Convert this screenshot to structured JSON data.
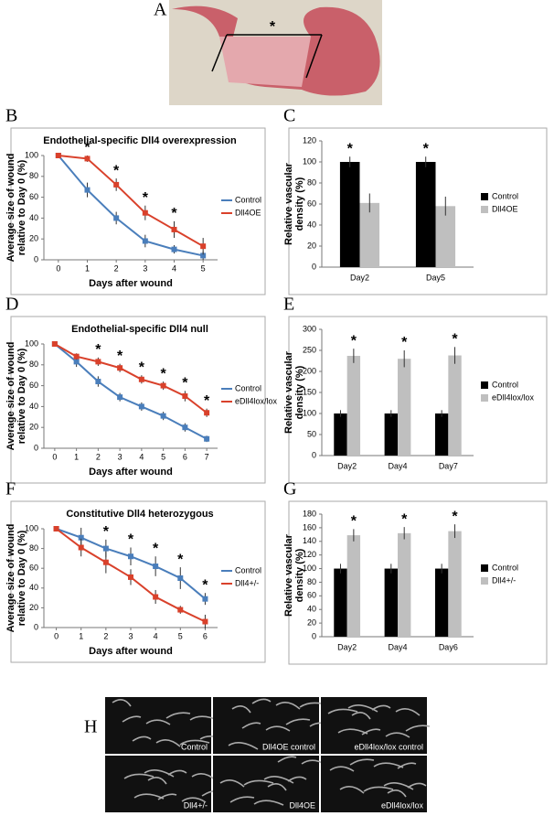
{
  "figure": {
    "panel_a": {
      "label": "A",
      "annotation": "*"
    },
    "panel_h": {
      "label": "H",
      "captions": [
        "Control",
        "Dll4OE control",
        "eDll4lox/lox control",
        "Dll4+/-",
        "Dll4OE",
        "eDll4lox/lox"
      ]
    }
  },
  "chart_data": [
    {
      "type": "line",
      "panel": "B",
      "title": "Endothelial-specific Dll4 overexpression",
      "ylabel": [
        "Average size of wound",
        "relative to Day 0 (%)"
      ],
      "xlabel": "Days after wound",
      "x": [
        0,
        1,
        2,
        3,
        4,
        5
      ],
      "xlim": [
        -0.5,
        5.5
      ],
      "xticks": [
        0,
        1,
        2,
        3,
        4,
        5
      ],
      "ylim": [
        0,
        100
      ],
      "yticks": [
        0,
        20,
        40,
        60,
        80,
        100
      ],
      "legend": "right",
      "series": [
        {
          "name": "Control",
          "color": "#4a7ebb",
          "values": [
            100,
            67,
            40,
            18,
            10,
            4
          ],
          "errors": [
            0,
            7,
            6,
            6,
            4,
            4
          ]
        },
        {
          "name": "Dll4OE",
          "color": "#d9412b",
          "values": [
            100,
            97,
            72,
            45,
            29,
            13
          ],
          "errors": [
            0,
            3,
            6,
            7,
            8,
            8
          ]
        }
      ],
      "annotations": [
        {
          "text": "*",
          "x": 1
        },
        {
          "text": "*",
          "x": 2
        },
        {
          "text": "*",
          "x": 3
        },
        {
          "text": "*",
          "x": 4
        }
      ]
    },
    {
      "type": "bar",
      "panel": "C",
      "ylabel": [
        "Relative vascular",
        "density (%)"
      ],
      "categories": [
        "Day2",
        "Day5"
      ],
      "ylim": [
        0,
        120
      ],
      "yticks": [
        0,
        20,
        40,
        60,
        80,
        100,
        120
      ],
      "legend": "right",
      "series": [
        {
          "name": "Control",
          "color": "#000000",
          "values": [
            100,
            100
          ],
          "errors": [
            5,
            5
          ]
        },
        {
          "name": "Dll4OE",
          "color": "#bfbfbf",
          "values": [
            61,
            58
          ],
          "errors": [
            9,
            9
          ]
        }
      ],
      "annotations": [
        {
          "text": "*",
          "category": "Day2",
          "series": "Control"
        },
        {
          "text": "*",
          "category": "Day5",
          "series": "Control"
        }
      ]
    },
    {
      "type": "line",
      "panel": "D",
      "title": "Endothelial-specific Dll4 null",
      "ylabel": [
        "Average size of wound",
        "relative to Day 0 (%)"
      ],
      "xlabel": "Days after wound",
      "x": [
        0,
        1,
        2,
        3,
        4,
        5,
        6,
        7
      ],
      "xlim": [
        -0.5,
        7.5
      ],
      "xticks": [
        0,
        1,
        2,
        3,
        4,
        5,
        6,
        7
      ],
      "ylim": [
        0,
        100
      ],
      "yticks": [
        0,
        20,
        40,
        60,
        80,
        100
      ],
      "legend": "right",
      "series": [
        {
          "name": "Control",
          "color": "#4a7ebb",
          "values": [
            100,
            83,
            64,
            49,
            40,
            31,
            20,
            9
          ],
          "errors": [
            0,
            5,
            5,
            4,
            4,
            4,
            4,
            3
          ]
        },
        {
          "name": "eDll4lox/lox",
          "color": "#d9412b",
          "values": [
            100,
            88,
            83,
            77,
            66,
            60,
            50,
            34
          ],
          "errors": [
            0,
            3,
            4,
            4,
            4,
            4,
            5,
            4
          ]
        }
      ],
      "annotations": [
        {
          "text": "*",
          "x": 2
        },
        {
          "text": "*",
          "x": 3
        },
        {
          "text": "*",
          "x": 4
        },
        {
          "text": "*",
          "x": 5
        },
        {
          "text": "*",
          "x": 6
        },
        {
          "text": "*",
          "x": 7
        }
      ]
    },
    {
      "type": "bar",
      "panel": "E",
      "ylabel": [
        "Relative vascular",
        "density (%)"
      ],
      "categories": [
        "Day2",
        "Day4",
        "Day7"
      ],
      "ylim": [
        0,
        300
      ],
      "yticks": [
        0,
        50,
        100,
        150,
        200,
        250,
        300
      ],
      "legend": "right",
      "series": [
        {
          "name": "Control",
          "color": "#000000",
          "values": [
            100,
            100,
            100
          ],
          "errors": [
            8,
            8,
            8
          ]
        },
        {
          "name": "eDll4lox/lox",
          "color": "#bfbfbf",
          "values": [
            237,
            230,
            238
          ],
          "errors": [
            17,
            20,
            20
          ]
        }
      ],
      "annotations": [
        {
          "text": "*",
          "category": "Day2",
          "series": "eDll4lox/lox"
        },
        {
          "text": "*",
          "category": "Day4",
          "series": "eDll4lox/lox"
        },
        {
          "text": "*",
          "category": "Day7",
          "series": "eDll4lox/lox"
        }
      ]
    },
    {
      "type": "line",
      "panel": "F",
      "title": "Constitutive Dll4 heterozygous",
      "ylabel": [
        "Average size of wound",
        "relative to Day 0 (%)"
      ],
      "xlabel": "Days after wound",
      "x": [
        0,
        1,
        2,
        3,
        4,
        5,
        6
      ],
      "xlim": [
        -0.5,
        6.5
      ],
      "xticks": [
        0,
        1,
        2,
        3,
        4,
        5,
        6
      ],
      "ylim": [
        0,
        100
      ],
      "yticks": [
        0,
        20,
        40,
        60,
        80,
        100
      ],
      "legend": "right",
      "series": [
        {
          "name": "Control",
          "color": "#4a7ebb",
          "values": [
            100,
            91,
            80,
            72,
            62,
            50,
            29
          ],
          "errors": [
            0,
            10,
            9,
            9,
            10,
            11,
            6
          ]
        },
        {
          "name": "Dll4+/-",
          "color": "#d9412b",
          "values": [
            100,
            81,
            66,
            51,
            31,
            18,
            6
          ],
          "errors": [
            0,
            9,
            11,
            8,
            7,
            4,
            7
          ]
        }
      ],
      "annotations": [
        {
          "text": "*",
          "x": 2
        },
        {
          "text": "*",
          "x": 3
        },
        {
          "text": "*",
          "x": 4
        },
        {
          "text": "*",
          "x": 5
        },
        {
          "text": "*",
          "x": 6
        }
      ]
    },
    {
      "type": "bar",
      "panel": "G",
      "ylabel": [
        "Relative vascular",
        "density (%)"
      ],
      "categories": [
        "Day2",
        "Day4",
        "Day6"
      ],
      "ylim": [
        0,
        180
      ],
      "yticks": [
        0,
        20,
        40,
        60,
        80,
        100,
        120,
        140,
        160,
        180
      ],
      "legend": "right",
      "series": [
        {
          "name": "Control",
          "color": "#000000",
          "values": [
            100,
            100,
            100
          ],
          "errors": [
            7,
            7,
            7
          ]
        },
        {
          "name": "Dll4+/-",
          "color": "#bfbfbf",
          "values": [
            149,
            152,
            155
          ],
          "errors": [
            9,
            9,
            10
          ]
        }
      ],
      "annotations": [
        {
          "text": "*",
          "category": "Day2",
          "series": "Dll4+/-"
        },
        {
          "text": "*",
          "category": "Day4",
          "series": "Dll4+/-"
        },
        {
          "text": "*",
          "category": "Day6",
          "series": "Dll4+/-"
        }
      ]
    }
  ]
}
